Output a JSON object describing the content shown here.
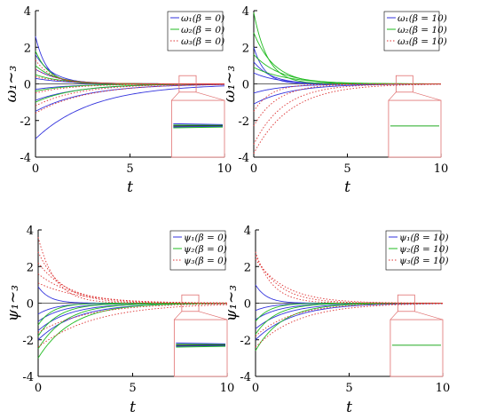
{
  "chart_data": [
    {
      "type": "line",
      "panel": "top-left",
      "xlabel": "t",
      "ylabel": "ω₁∼₃",
      "xlim": [
        0,
        10
      ],
      "ylim": [
        -4,
        4
      ],
      "xticks": [
        "0",
        "5",
        "10"
      ],
      "yticks": [
        "4",
        "2",
        "0",
        "-2",
        "-4"
      ],
      "legend": [
        "ω₁(β = 0)",
        "ω₂(β = 0)",
        "ω₃(β = 0)"
      ],
      "legend_position": "top-right",
      "zoom_inset": true,
      "series": [
        {
          "name": "ω₁(β = 0)",
          "color": "#3333dd",
          "style": "solid",
          "curves": [
            2.6,
            1.6,
            0.8,
            0.3,
            -0.3,
            -0.9,
            -1.5,
            -3.0
          ]
        },
        {
          "name": "ω₂(β = 0)",
          "color": "#22bb22",
          "style": "solid",
          "curves": [
            1.8,
            1.0,
            0.5,
            -0.4,
            -1.0
          ]
        },
        {
          "name": "ω₃(β = 0)",
          "color": "#dd3333",
          "style": "dotted",
          "curves": [
            1.3,
            0.8,
            0.4,
            -0.5,
            -1.2,
            -1.6
          ]
        }
      ]
    },
    {
      "type": "line",
      "panel": "top-right",
      "xlabel": "t",
      "ylabel": "ω₁∼₃",
      "xlim": [
        0,
        10
      ],
      "ylim": [
        -4,
        4
      ],
      "xticks": [
        "0",
        "5",
        "10"
      ],
      "yticks": [
        "4",
        "2",
        "0",
        "-2",
        "-4"
      ],
      "legend": [
        "ω₁(β = 10)",
        "ω₂(β = 10)",
        "ω₃(β = 10)"
      ],
      "legend_position": "top-right",
      "zoom_inset": true,
      "series": [
        {
          "name": "ω₁(β = 10)",
          "color": "#3333dd",
          "style": "solid",
          "curves": [
            2.0,
            1.2,
            0.6,
            -0.5,
            -1.1
          ]
        },
        {
          "name": "ω₂(β = 10)",
          "color": "#22bb22",
          "style": "solid",
          "curves": [
            3.9,
            2.8,
            1.6,
            0.9
          ]
        },
        {
          "name": "ω₃(β = 10)",
          "color": "#dd3333",
          "style": "dotted",
          "curves": [
            -1.5,
            -2.3,
            -3.3,
            -3.8
          ]
        }
      ]
    },
    {
      "type": "line",
      "panel": "bottom-left",
      "xlabel": "t",
      "ylabel": "ψ₁∼₃",
      "xlim": [
        0,
        10
      ],
      "ylim": [
        -4,
        4
      ],
      "xticks": [
        "0",
        "5",
        "10"
      ],
      "yticks": [
        "4",
        "2",
        "0",
        "-2",
        "-4"
      ],
      "legend": [
        "ψ₁(β = 0)",
        "ψ₂(β = 0)",
        "ψ₃(β = 0)"
      ],
      "legend_position": "top-right",
      "zoom_inset": true,
      "series": [
        {
          "name": "ψ₁(β = 0)",
          "color": "#3333dd",
          "style": "solid",
          "curves": [
            0.9,
            -0.6,
            -1.0,
            -1.5,
            -2.0
          ]
        },
        {
          "name": "ψ₂(β = 0)",
          "color": "#22bb22",
          "style": "solid",
          "curves": [
            -1.2,
            -1.8,
            -2.5,
            -3.0
          ]
        },
        {
          "name": "ψ₃(β = 0)",
          "color": "#dd3333",
          "style": "dotted",
          "curves": [
            3.6,
            2.8,
            2.2,
            1.6,
            1.1,
            -1.6,
            -2.4
          ]
        }
      ]
    },
    {
      "type": "line",
      "panel": "bottom-right",
      "xlabel": "t",
      "ylabel": "ψ₁∼₃",
      "xlim": [
        0,
        10
      ],
      "ylim": [
        -4,
        4
      ],
      "xticks": [
        "0",
        "5",
        "10"
      ],
      "yticks": [
        "4",
        "2",
        "0",
        "-2",
        "-4"
      ],
      "legend": [
        "ψ₁(β = 10)",
        "ψ₂(β = 10)",
        "ψ₃(β = 10)"
      ],
      "legend_position": "top-right",
      "zoom_inset": true,
      "series": [
        {
          "name": "ψ₁(β = 10)",
          "color": "#3333dd",
          "style": "solid",
          "curves": [
            1.0,
            -0.4,
            -0.9,
            -1.4,
            -2.0
          ]
        },
        {
          "name": "ψ₂(β = 10)",
          "color": "#22bb22",
          "style": "solid",
          "curves": [
            -1.0,
            -1.7,
            -2.6
          ]
        },
        {
          "name": "ψ₃(β = 10)",
          "color": "#dd3333",
          "style": "dotted",
          "curves": [
            2.8,
            2.6,
            2.4,
            -1.8,
            -2.4
          ]
        }
      ]
    }
  ]
}
